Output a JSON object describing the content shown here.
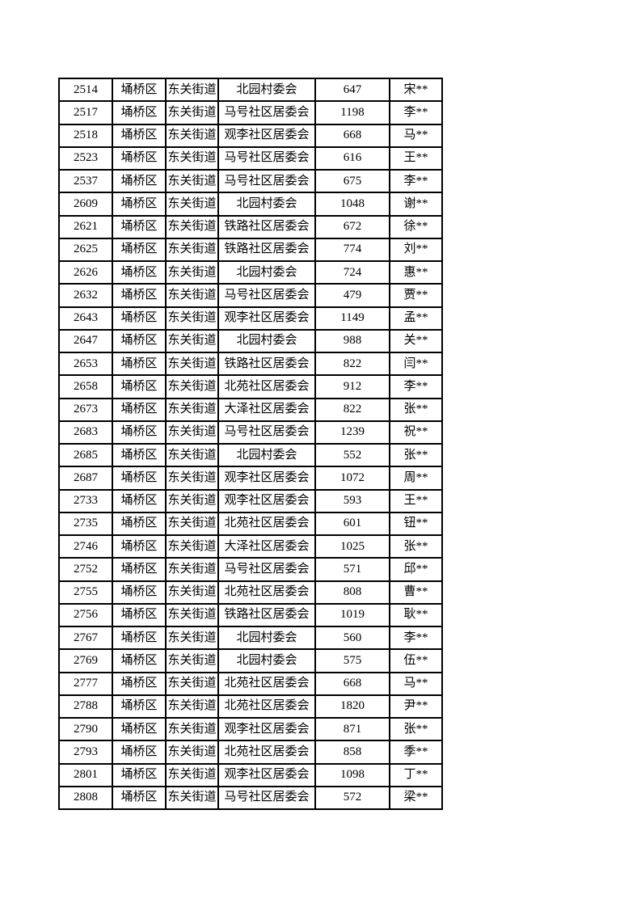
{
  "page": {
    "background_color": "#ffffff",
    "text_color": "#000000",
    "table_border_color": "#000000"
  },
  "table": {
    "column_keys": [
      "serial",
      "district",
      "street",
      "committee",
      "count",
      "name"
    ],
    "rows": [
      [
        "2514",
        "埇桥区",
        "东关街道",
        "北园村委会",
        "647",
        "宋**"
      ],
      [
        "2517",
        "埇桥区",
        "东关街道",
        "马号社区居委会",
        "1198",
        "李**"
      ],
      [
        "2518",
        "埇桥区",
        "东关街道",
        "观李社区居委会",
        "668",
        "马**"
      ],
      [
        "2523",
        "埇桥区",
        "东关街道",
        "马号社区居委会",
        "616",
        "王**"
      ],
      [
        "2537",
        "埇桥区",
        "东关街道",
        "马号社区居委会",
        "675",
        "李**"
      ],
      [
        "2609",
        "埇桥区",
        "东关街道",
        "北园村委会",
        "1048",
        "谢**"
      ],
      [
        "2621",
        "埇桥区",
        "东关街道",
        "铁路社区居委会",
        "672",
        "徐**"
      ],
      [
        "2625",
        "埇桥区",
        "东关街道",
        "铁路社区居委会",
        "774",
        "刘**"
      ],
      [
        "2626",
        "埇桥区",
        "东关街道",
        "北园村委会",
        "724",
        "惠**"
      ],
      [
        "2632",
        "埇桥区",
        "东关街道",
        "马号社区居委会",
        "479",
        "贾**"
      ],
      [
        "2643",
        "埇桥区",
        "东关街道",
        "观李社区居委会",
        "1149",
        "孟**"
      ],
      [
        "2647",
        "埇桥区",
        "东关街道",
        "北园村委会",
        "988",
        "关**"
      ],
      [
        "2653",
        "埇桥区",
        "东关街道",
        "铁路社区居委会",
        "822",
        "闫**"
      ],
      [
        "2658",
        "埇桥区",
        "东关街道",
        "北苑社区居委会",
        "912",
        "李**"
      ],
      [
        "2673",
        "埇桥区",
        "东关街道",
        "大泽社区居委会",
        "822",
        "张**"
      ],
      [
        "2683",
        "埇桥区",
        "东关街道",
        "马号社区居委会",
        "1239",
        "祝**"
      ],
      [
        "2685",
        "埇桥区",
        "东关街道",
        "北园村委会",
        "552",
        "张**"
      ],
      [
        "2687",
        "埇桥区",
        "东关街道",
        "观李社区居委会",
        "1072",
        "周**"
      ],
      [
        "2733",
        "埇桥区",
        "东关街道",
        "观李社区居委会",
        "593",
        "王**"
      ],
      [
        "2735",
        "埇桥区",
        "东关街道",
        "北苑社区居委会",
        "601",
        "钮**"
      ],
      [
        "2746",
        "埇桥区",
        "东关街道",
        "大泽社区居委会",
        "1025",
        "张**"
      ],
      [
        "2752",
        "埇桥区",
        "东关街道",
        "马号社区居委会",
        "571",
        "邱**"
      ],
      [
        "2755",
        "埇桥区",
        "东关街道",
        "北苑社区居委会",
        "808",
        "曹**"
      ],
      [
        "2756",
        "埇桥区",
        "东关街道",
        "铁路社区居委会",
        "1019",
        "耿**"
      ],
      [
        "2767",
        "埇桥区",
        "东关街道",
        "北园村委会",
        "560",
        "李**"
      ],
      [
        "2769",
        "埇桥区",
        "东关街道",
        "北园村委会",
        "575",
        "伍**"
      ],
      [
        "2777",
        "埇桥区",
        "东关街道",
        "北苑社区居委会",
        "668",
        "马**"
      ],
      [
        "2788",
        "埇桥区",
        "东关街道",
        "北苑社区居委会",
        "1820",
        "尹**"
      ],
      [
        "2790",
        "埇桥区",
        "东关街道",
        "观李社区居委会",
        "871",
        "张**"
      ],
      [
        "2793",
        "埇桥区",
        "东关街道",
        "北苑社区居委会",
        "858",
        "季**"
      ],
      [
        "2801",
        "埇桥区",
        "东关街道",
        "观李社区居委会",
        "1098",
        "丁**"
      ],
      [
        "2808",
        "埇桥区",
        "东关街道",
        "马号社区居委会",
        "572",
        "梁**"
      ]
    ]
  }
}
